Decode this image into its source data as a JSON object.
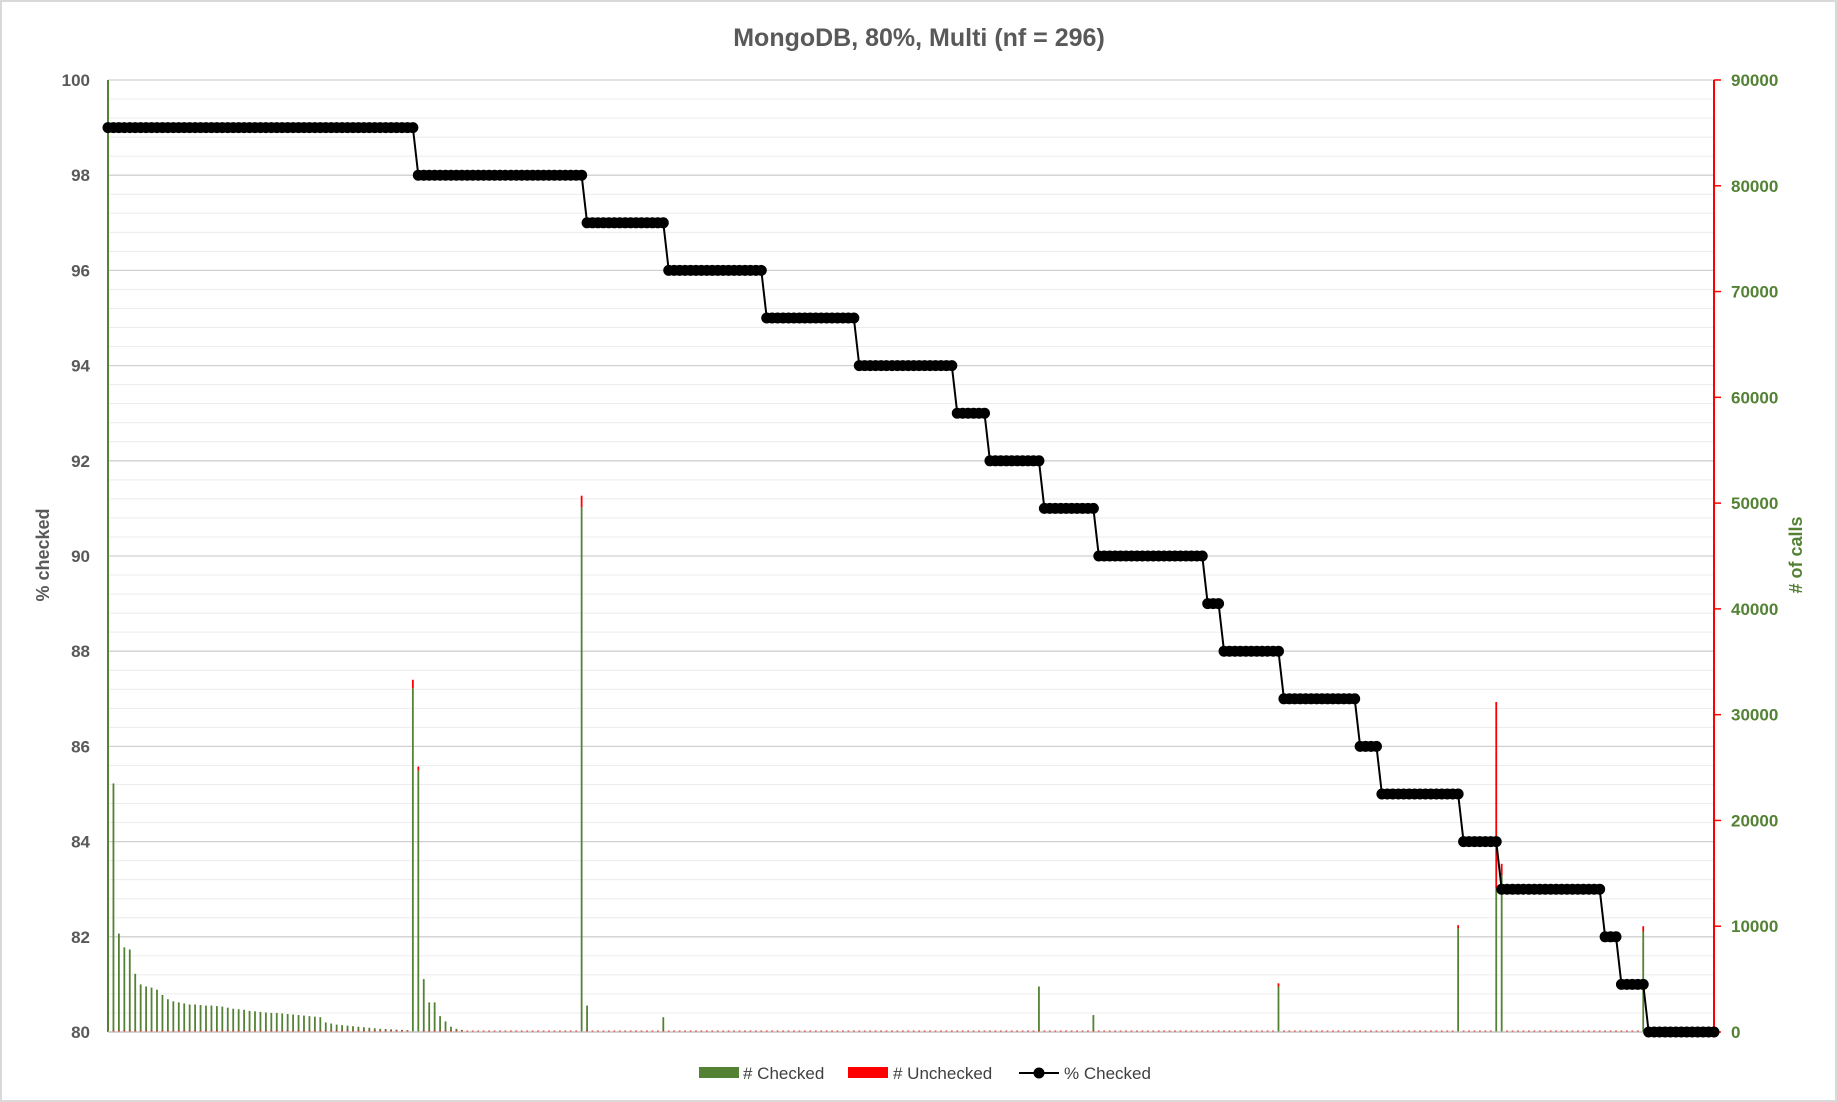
{
  "chart_data": {
    "type": "bar",
    "title": "MongoDB, 80%, Multi (nf = 296)",
    "ylabel": "% checked",
    "y2label": "# of calls",
    "ylim": [
      80,
      100
    ],
    "y2lim": [
      0,
      90000
    ],
    "yticks": [
      "80",
      "82",
      "84",
      "86",
      "88",
      "90",
      "92",
      "94",
      "96",
      "98",
      "100"
    ],
    "y2ticks": [
      "0",
      "10000",
      "20000",
      "30000",
      "40000",
      "50000",
      "60000",
      "70000",
      "80000",
      "90000"
    ],
    "grid": true,
    "legend_position": "bottom",
    "legend": [
      "# Checked",
      "# Unchecked",
      "% Checked"
    ],
    "colors": {
      "checked": "#548235",
      "unchecked": "#ff0000",
      "pct": "#000000",
      "grid": "#d9d9d9",
      "text": "#595959"
    },
    "n_points": 296,
    "pct_checked_steps": [
      {
        "from": 0,
        "to": 56,
        "value": 99
      },
      {
        "from": 57,
        "to": 87,
        "value": 98
      },
      {
        "from": 88,
        "to": 102,
        "value": 97
      },
      {
        "from": 103,
        "to": 120,
        "value": 96
      },
      {
        "from": 121,
        "to": 137,
        "value": 95
      },
      {
        "from": 138,
        "to": 155,
        "value": 94
      },
      {
        "from": 156,
        "to": 161,
        "value": 93
      },
      {
        "from": 162,
        "to": 171,
        "value": 92
      },
      {
        "from": 172,
        "to": 181,
        "value": 91
      },
      {
        "from": 182,
        "to": 201,
        "value": 90
      },
      {
        "from": 202,
        "to": 204,
        "value": 89
      },
      {
        "from": 205,
        "to": 215,
        "value": 88
      },
      {
        "from": 216,
        "to": 229,
        "value": 87
      },
      {
        "from": 230,
        "to": 233,
        "value": 86
      },
      {
        "from": 234,
        "to": 248,
        "value": 85
      },
      {
        "from": 249,
        "to": 255,
        "value": 84
      },
      {
        "from": 256,
        "to": 274,
        "value": 83
      },
      {
        "from": 275,
        "to": 277,
        "value": 82
      },
      {
        "from": 278,
        "to": 282,
        "value": 81
      },
      {
        "from": 283,
        "to": 295,
        "value": 80
      }
    ],
    "calls_checked": [
      [
        0,
        88700
      ],
      [
        1,
        23500
      ],
      [
        2,
        9300
      ],
      [
        3,
        8000
      ],
      [
        4,
        7800
      ],
      [
        5,
        5500
      ],
      [
        6,
        4500
      ],
      [
        7,
        4300
      ],
      [
        8,
        4200
      ],
      [
        9,
        4000
      ],
      [
        10,
        3500
      ],
      [
        11,
        3100
      ],
      [
        12,
        2900
      ],
      [
        13,
        2800
      ],
      [
        14,
        2700
      ],
      [
        15,
        2600
      ],
      [
        16,
        2600
      ],
      [
        17,
        2550
      ],
      [
        18,
        2500
      ],
      [
        19,
        2500
      ],
      [
        20,
        2450
      ],
      [
        21,
        2400
      ],
      [
        22,
        2300
      ],
      [
        23,
        2200
      ],
      [
        24,
        2150
      ],
      [
        25,
        2100
      ],
      [
        26,
        2000
      ],
      [
        27,
        1950
      ],
      [
        28,
        1900
      ],
      [
        29,
        1850
      ],
      [
        30,
        1800
      ],
      [
        31,
        1800
      ],
      [
        32,
        1750
      ],
      [
        33,
        1700
      ],
      [
        34,
        1650
      ],
      [
        35,
        1600
      ],
      [
        36,
        1550
      ],
      [
        37,
        1500
      ],
      [
        38,
        1450
      ],
      [
        39,
        1400
      ],
      [
        40,
        900
      ],
      [
        41,
        800
      ],
      [
        42,
        700
      ],
      [
        43,
        650
      ],
      [
        44,
        600
      ],
      [
        45,
        550
      ],
      [
        46,
        500
      ],
      [
        47,
        450
      ],
      [
        48,
        400
      ],
      [
        49,
        350
      ],
      [
        50,
        300
      ],
      [
        51,
        280
      ],
      [
        52,
        250
      ],
      [
        53,
        220
      ],
      [
        54,
        200
      ],
      [
        55,
        180
      ],
      [
        56,
        32500
      ],
      [
        57,
        24700
      ],
      [
        58,
        5000
      ],
      [
        59,
        2800
      ],
      [
        60,
        2800
      ],
      [
        61,
        1500
      ],
      [
        62,
        1000
      ],
      [
        63,
        500
      ],
      [
        64,
        300
      ],
      [
        65,
        200
      ],
      [
        87,
        49600
      ],
      [
        88,
        2500
      ],
      [
        102,
        1400
      ],
      [
        171,
        4300
      ],
      [
        181,
        1600
      ],
      [
        215,
        4300
      ],
      [
        248,
        9800
      ],
      [
        255,
        13600
      ],
      [
        256,
        14800
      ],
      [
        282,
        9500
      ]
    ],
    "calls_unchecked": [
      [
        56,
        800
      ],
      [
        57,
        400
      ],
      [
        87,
        1100
      ],
      [
        215,
        300
      ],
      [
        248,
        300
      ],
      [
        255,
        17600
      ],
      [
        256,
        1100
      ],
      [
        282,
        500
      ]
    ],
    "default_small_checked": 60
  }
}
